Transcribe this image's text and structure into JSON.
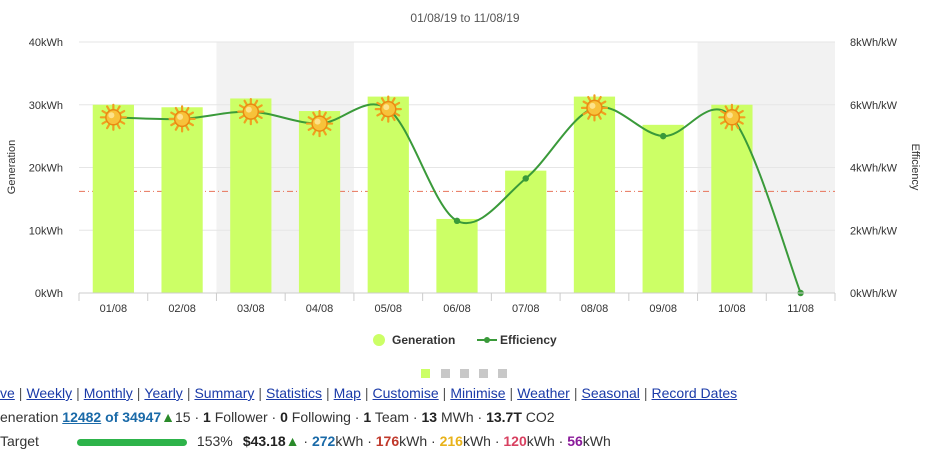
{
  "chart_data": {
    "type": "bar",
    "title": "01/08/19 to 11/08/19",
    "categories": [
      "01/08",
      "02/08",
      "03/08",
      "04/08",
      "05/08",
      "06/08",
      "07/08",
      "08/08",
      "09/08",
      "10/08",
      "11/08"
    ],
    "series": [
      {
        "name": "Generation",
        "type": "bar",
        "axis": "left",
        "values": [
          30.0,
          29.6,
          31.0,
          29.0,
          31.3,
          11.8,
          19.5,
          31.3,
          26.8,
          30.0,
          0
        ],
        "color": "#ccff66"
      },
      {
        "name": "Efficiency",
        "type": "line",
        "axis": "right",
        "values": [
          5.6,
          5.55,
          5.78,
          5.4,
          5.86,
          2.3,
          3.65,
          5.9,
          5.0,
          5.6,
          0
        ],
        "color": "#3a9a3a"
      }
    ],
    "sunny": [
      true,
      true,
      true,
      true,
      true,
      false,
      false,
      true,
      false,
      true,
      false
    ],
    "shaded_columns": [
      "03/08",
      "04/08",
      "10/08",
      "11/08"
    ],
    "ylabel": "Generation",
    "y2label": "Efficiency",
    "ylim": [
      0,
      40
    ],
    "y2lim": [
      0,
      8
    ],
    "yticks": [
      "0kWh",
      "10kWh",
      "20kWh",
      "30kWh",
      "40kWh"
    ],
    "y2ticks": [
      "0kWh/kW",
      "2kWh/kW",
      "4kWh/kW",
      "6kWh/kW",
      "8kWh/kW"
    ],
    "target_line": 16.2,
    "grid": true,
    "legend": [
      "Generation",
      "Efficiency"
    ],
    "legend_position": "bottom"
  },
  "nav": [
    "ve",
    "Weekly",
    "Monthly",
    "Yearly",
    "Summary",
    "Statistics",
    "Map",
    "Customise",
    "Minimise",
    "Weather",
    "Seasonal",
    "Record Dates"
  ],
  "stats": {
    "gen_label": "eneration",
    "rank": "12482",
    "of_text": "of 34947",
    "rank_change": "15",
    "followers": "1",
    "followers_label": "Follower",
    "following": "0",
    "following_label": "Following",
    "teams": "1",
    "teams_label": "Team",
    "mwh": "13",
    "mwh_label": "MWh",
    "co2": "13.7T",
    "co2_label": "CO2"
  },
  "target": {
    "label": "Target",
    "progress": 1.53,
    "percent": "153%",
    "money": "$43.18",
    "v1": "272",
    "v2": "176",
    "v3": "216",
    "v4": "120",
    "v5": "56",
    "unit": "kWh"
  }
}
